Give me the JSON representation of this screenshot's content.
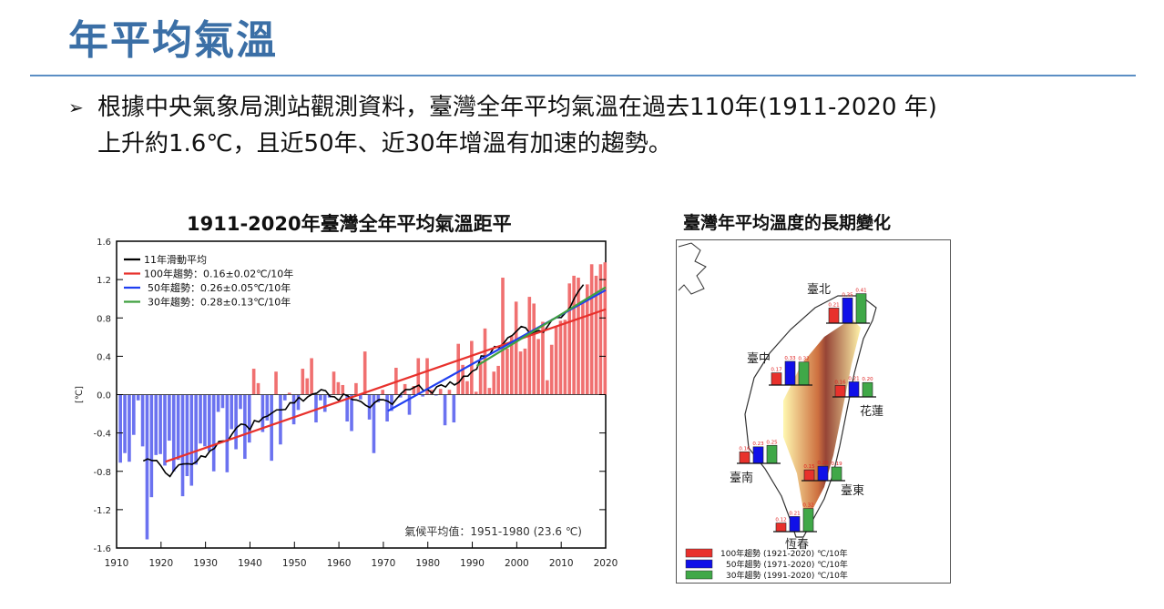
{
  "slide": {
    "title": "年平均氣溫",
    "bullet_icon": "arrow-bullet-icon",
    "bullet_line1": "根據中央氣象局測站觀測資料，臺灣全年平均氣溫在過去110年(1911-2020 年)",
    "bullet_line2": "上升約1.6℃，且近50年、近30年增溫有加速的趨勢。"
  },
  "chart_data": [
    {
      "type": "bar",
      "title": "1911-2020年臺灣全年平均氣溫距平",
      "ylabel": "[℃]",
      "xlabel": "",
      "xlim": [
        1910,
        2020
      ],
      "ylim": [
        -1.6,
        1.6
      ],
      "xticks": [
        "1910",
        "1920",
        "1930",
        "1940",
        "1950",
        "1960",
        "1970",
        "1980",
        "1990",
        "2000",
        "2010",
        "2020"
      ],
      "yticks": [
        "1.6",
        "1.2",
        "0.8",
        "0.4",
        "0.0",
        "-0.4",
        "-0.8",
        "-1.2",
        "-1.6"
      ],
      "x_start": 1911,
      "values": [
        -0.71,
        -0.61,
        -0.7,
        -0.42,
        -0.06,
        -0.54,
        -1.51,
        -1.07,
        -0.63,
        -0.62,
        -0.74,
        -0.48,
        -0.8,
        -0.68,
        -1.06,
        -0.85,
        -0.95,
        -0.73,
        -0.51,
        -0.54,
        -0.59,
        -0.8,
        -0.18,
        -0.14,
        -0.81,
        -0.36,
        -0.57,
        -0.15,
        -0.67,
        -0.5,
        0.27,
        0.12,
        -0.39,
        -0.27,
        -0.69,
        0.24,
        -0.52,
        -0.06,
        0.02,
        -0.31,
        -0.16,
        0.27,
        0.17,
        0.38,
        -0.29,
        -0.06,
        -0.18,
        -0.03,
        0.24,
        0.13,
        0.1,
        -0.28,
        -0.38,
        0.12,
        -0.05,
        0.45,
        -0.26,
        -0.61,
        -0.08,
        0.05,
        -0.28,
        -0.17,
        0.28,
        -0.03,
        0.11,
        -0.21,
        0.09,
        0.38,
        -0.02,
        0.38,
        0.05,
        -0.01,
        0.06,
        -0.32,
        0.05,
        -0.29,
        0.53,
        0.31,
        0.14,
        0.56,
        0.03,
        0.35,
        0.69,
        0.07,
        0.24,
        0.3,
        1.22,
        0.48,
        0.61,
        0.97,
        0.45,
        0.48,
        1.02,
        0.95,
        0.58,
        0.76,
        0.15,
        0.52,
        0.71,
        0.77,
        0.78,
        1.16,
        1.24,
        1.22,
        0.96,
        1.15,
        1.36,
        1.24,
        1.36,
        1.38
      ],
      "colors": {
        "positive": "#f07070",
        "negative": "#6b72f0"
      },
      "series": [
        {
          "name": "11年滑動平均",
          "kind": "moving-average",
          "window": 11,
          "color": "#000000"
        },
        {
          "name": "100年趨勢：0.16±0.02℃/10年",
          "kind": "trend",
          "x": [
            1921,
            2020
          ],
          "y": [
            -0.7,
            0.89
          ],
          "color": "#e8312c"
        },
        {
          "name": "50年趨勢：0.26±0.05℃/10年",
          "kind": "trend",
          "x": [
            1971,
            2020
          ],
          "y": [
            -0.17,
            1.09
          ],
          "color": "#1f3ff0"
        },
        {
          "name": "30年趨勢：0.28±0.13℃/10年",
          "kind": "trend",
          "x": [
            1991,
            2020
          ],
          "y": [
            0.3,
            1.12
          ],
          "color": "#40a040"
        }
      ],
      "legend_position": "top-left",
      "annotation": "氣候平均值：1951-1980 (23.6 ℃)"
    },
    {
      "type": "bar",
      "title": "臺灣年平均溫度的長期變化",
      "stations": [
        {
          "name": "臺北",
          "values": [
            0.21,
            0.35,
            0.41
          ]
        },
        {
          "name": "臺中",
          "values": [
            0.17,
            0.33,
            0.32
          ]
        },
        {
          "name": "花蓮",
          "values": [
            0.16,
            0.21,
            0.2
          ]
        },
        {
          "name": "臺南",
          "values": [
            0.16,
            0.23,
            0.25
          ]
        },
        {
          "name": "臺東",
          "values": [
            0.15,
            0.2,
            0.19
          ]
        },
        {
          "name": "恆春",
          "values": [
            0.12,
            0.21,
            0.32
          ]
        }
      ],
      "series": [
        {
          "name": "100年趨勢 (1921-2020) ℃/10年",
          "color": "#e8312c"
        },
        {
          "name": "50年趨勢 (1971-2020) ℃/10年",
          "color": "#1010e8"
        },
        {
          "name": "30年趨勢 (1991-2020) ℃/10年",
          "color": "#40a848"
        }
      ],
      "legend_position": "bottom-left"
    }
  ]
}
